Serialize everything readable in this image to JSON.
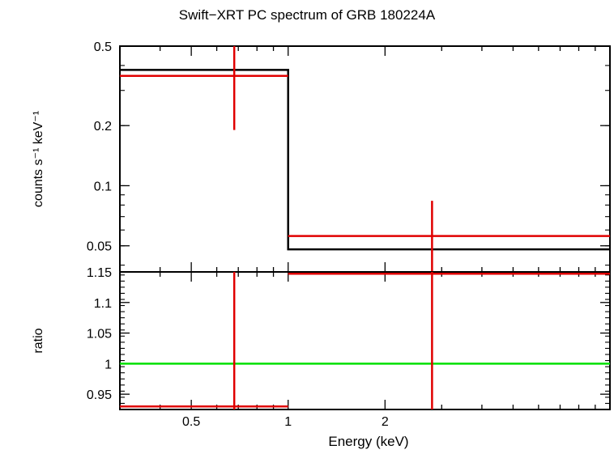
{
  "chart_data": {
    "type": "step",
    "title": "Swift−XRT PC spectrum of GRB 180224A",
    "xlabel": "Energy (keV)",
    "xscale": "log",
    "xlim": [
      0.3,
      10
    ],
    "xticks": [
      {
        "value": 0.5,
        "label": "0.5"
      },
      {
        "value": 1,
        "label": "1"
      },
      {
        "value": 2,
        "label": "2"
      }
    ],
    "panels": [
      {
        "id": "spectrum",
        "ylabel": "counts s⁻¹ keV⁻¹",
        "yscale": "log",
        "ylim": [
          0.037,
          0.5
        ],
        "yticks": [
          {
            "value": 0.5,
            "label": "0.5"
          },
          {
            "value": 0.2,
            "label": "0.2"
          },
          {
            "value": 0.1,
            "label": "0.1"
          },
          {
            "value": 0.05,
            "label": "0.05"
          }
        ],
        "model": {
          "color": "#000000",
          "steps": [
            {
              "x0": 0.3,
              "x1": 1.0,
              "y": 0.38
            },
            {
              "x0": 1.0,
              "x1": 10.0,
              "y": 0.048
            }
          ]
        },
        "data": {
          "color": "#e00000",
          "points": [
            {
              "x": 0.68,
              "xlo": 0.3,
              "xhi": 1.0,
              "y": 0.355,
              "ylo": 0.19,
              "yhi": 0.5
            },
            {
              "x": 2.8,
              "xlo": 1.0,
              "xhi": 10.0,
              "y": 0.056,
              "ylo": 0.037,
              "yhi": 0.084
            }
          ]
        }
      },
      {
        "id": "ratio",
        "ylabel": "ratio",
        "yscale": "linear",
        "ylim": [
          0.925,
          1.15
        ],
        "yticks": [
          {
            "value": 1.15,
            "label": "1.15"
          },
          {
            "value": 1.1,
            "label": "1.1"
          },
          {
            "value": 1.05,
            "label": "1.05"
          },
          {
            "value": 1,
            "label": "1"
          },
          {
            "value": 0.95,
            "label": "0.95"
          }
        ],
        "reference": {
          "y": 1,
          "color": "#00e000"
        },
        "data": {
          "color": "#e00000",
          "points": [
            {
              "x": 0.68,
              "xlo": 0.3,
              "xhi": 1.0,
              "y": 0.93,
              "ylo": 0.925,
              "yhi": 1.15
            },
            {
              "x": 2.8,
              "xlo": 1.0,
              "xhi": 10.0,
              "y": 1.147,
              "ylo": 0.925,
              "yhi": 1.15
            }
          ]
        }
      }
    ]
  }
}
